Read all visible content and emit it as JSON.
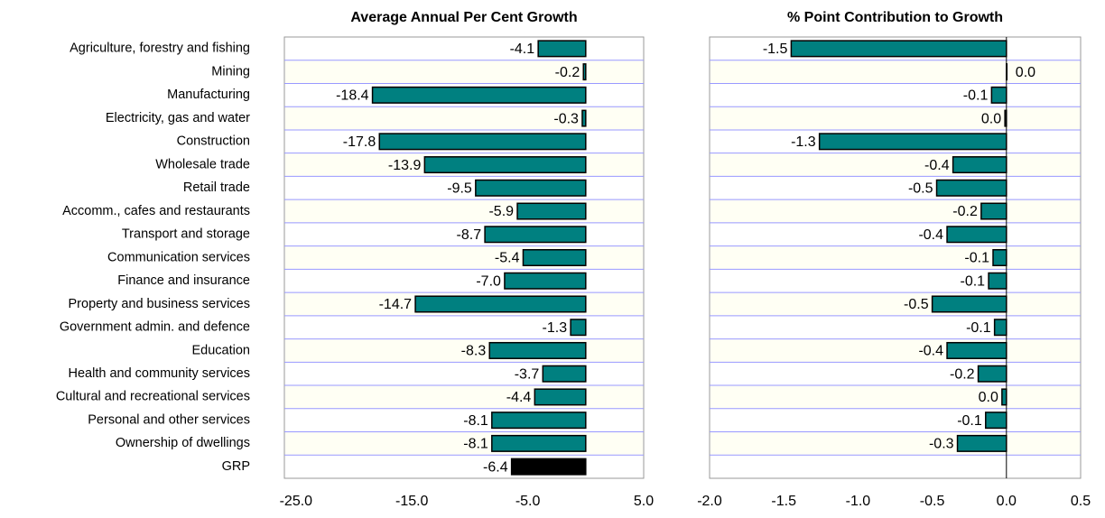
{
  "chart_data": [
    {
      "type": "bar",
      "orientation": "horizontal",
      "title": "Average Annual Per Cent Growth",
      "categories": [
        "Agriculture, forestry and fishing",
        "Mining",
        "Manufacturing",
        "Electricity, gas and water",
        "Construction",
        "Wholesale trade",
        "Retail trade",
        "Accomm., cafes and restaurants",
        "Transport and storage",
        "Communication services",
        "Finance and insurance",
        "Property and business services",
        "Government admin. and defence",
        "Education",
        "Health and community services",
        "Cultural and recreational services",
        "Personal and other services",
        "Ownership of dwellings",
        "GRP"
      ],
      "values": [
        -4.1,
        -0.2,
        -18.4,
        -0.3,
        -17.8,
        -13.9,
        -9.5,
        -5.9,
        -8.7,
        -5.4,
        -7.0,
        -14.7,
        -1.3,
        -8.3,
        -3.7,
        -4.4,
        -8.1,
        -8.1,
        -6.4
      ],
      "value_labels": [
        "-4.1",
        "-0.2",
        "-18.4",
        "-0.3",
        "-17.8",
        "-13.9",
        "-9.5",
        "-5.9",
        "-8.7",
        "-5.4",
        "-7.0",
        "-14.7",
        "-1.3",
        "-8.3",
        "-3.7",
        "-4.4",
        "-8.1",
        "-8.1",
        "-6.4"
      ],
      "colors": [
        "#008080",
        "#008080",
        "#008080",
        "#008080",
        "#008080",
        "#008080",
        "#008080",
        "#008080",
        "#008080",
        "#008080",
        "#008080",
        "#008080",
        "#008080",
        "#008080",
        "#008080",
        "#008080",
        "#008080",
        "#008080",
        "#000000"
      ],
      "xlim": [
        -26,
        5
      ],
      "xticks": [
        {
          "value": -25,
          "label": "-25.0"
        },
        {
          "value": -15,
          "label": "-15.0"
        },
        {
          "value": -5,
          "label": "-5.0"
        },
        {
          "value": 5,
          "label": "5.0"
        }
      ]
    },
    {
      "type": "bar",
      "orientation": "horizontal",
      "title": "% Point Contribution to Growth",
      "values": [
        -1.45,
        0.0,
        -0.1,
        -0.01,
        -1.26,
        -0.36,
        -0.47,
        -0.17,
        -0.4,
        -0.09,
        -0.12,
        -0.5,
        -0.08,
        -0.4,
        -0.19,
        -0.03,
        -0.14,
        -0.33,
        null
      ],
      "value_labels": [
        "-1.5",
        "0.0",
        "-0.1",
        "0.0",
        "-1.3",
        "-0.4",
        "-0.5",
        "-0.2",
        "-0.4",
        "-0.1",
        "-0.1",
        "-0.5",
        "-0.1",
        "-0.4",
        "-0.2",
        "0.0",
        "-0.1",
        "-0.3",
        null
      ],
      "color": "#008080",
      "xlim": [
        -2,
        0.5
      ],
      "xticks": [
        {
          "value": -2,
          "label": "-2.0"
        },
        {
          "value": -1.5,
          "label": "-1.5"
        },
        {
          "value": -1,
          "label": "-1.0"
        },
        {
          "value": -0.5,
          "label": "-0.5"
        },
        {
          "value": 0,
          "label": "0.0"
        },
        {
          "value": 0.5,
          "label": "0.5"
        }
      ],
      "zero_line": true
    }
  ]
}
